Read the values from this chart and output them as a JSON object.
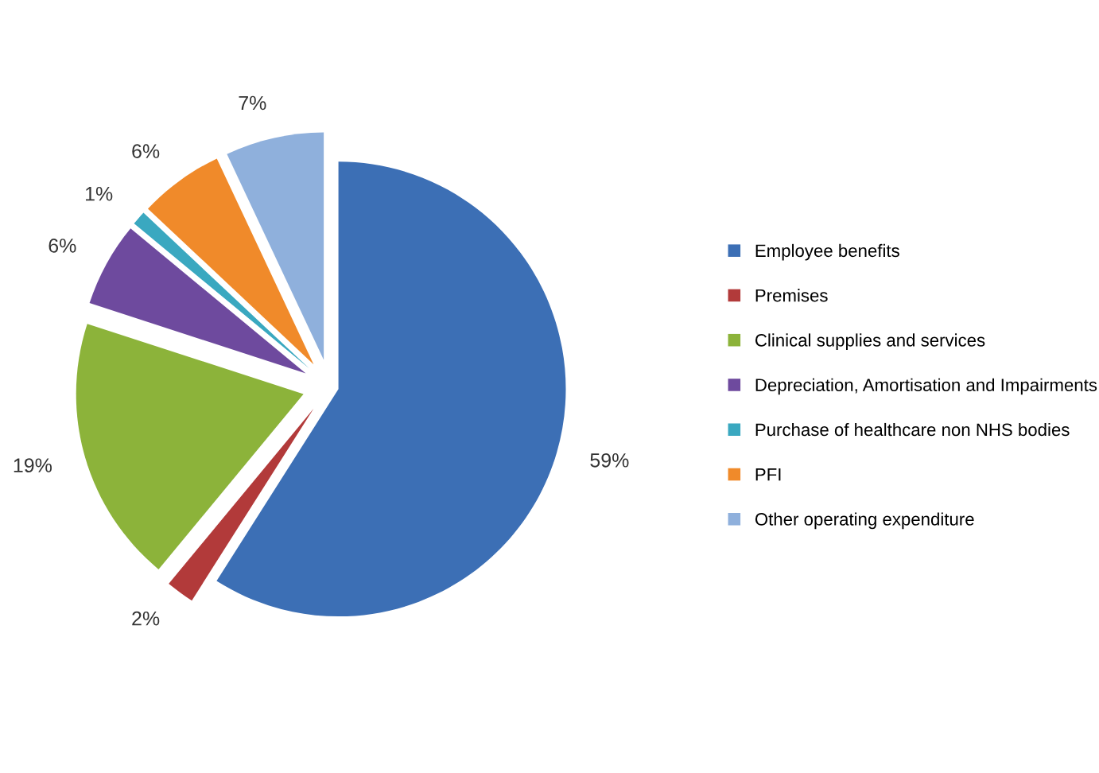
{
  "chart_data": {
    "type": "pie",
    "categories": [
      "Employee benefits",
      "Premises",
      "Clinical supplies and services",
      "Depreciation, Amortisation and Impairments",
      "Purchase of healthcare non NHS bodies",
      "PFI",
      "Other operating expenditure"
    ],
    "values": [
      59,
      2,
      19,
      6,
      1,
      6,
      7
    ],
    "value_labels": [
      "59%",
      "2%",
      "19%",
      "6%",
      "1%",
      "6%",
      "7%"
    ],
    "colors": [
      "#3c6fb5",
      "#b23a3a",
      "#8cb33a",
      "#6e4a9e",
      "#3aa8c0",
      "#f08a2a",
      "#8fb0dc"
    ],
    "legend": "right"
  }
}
